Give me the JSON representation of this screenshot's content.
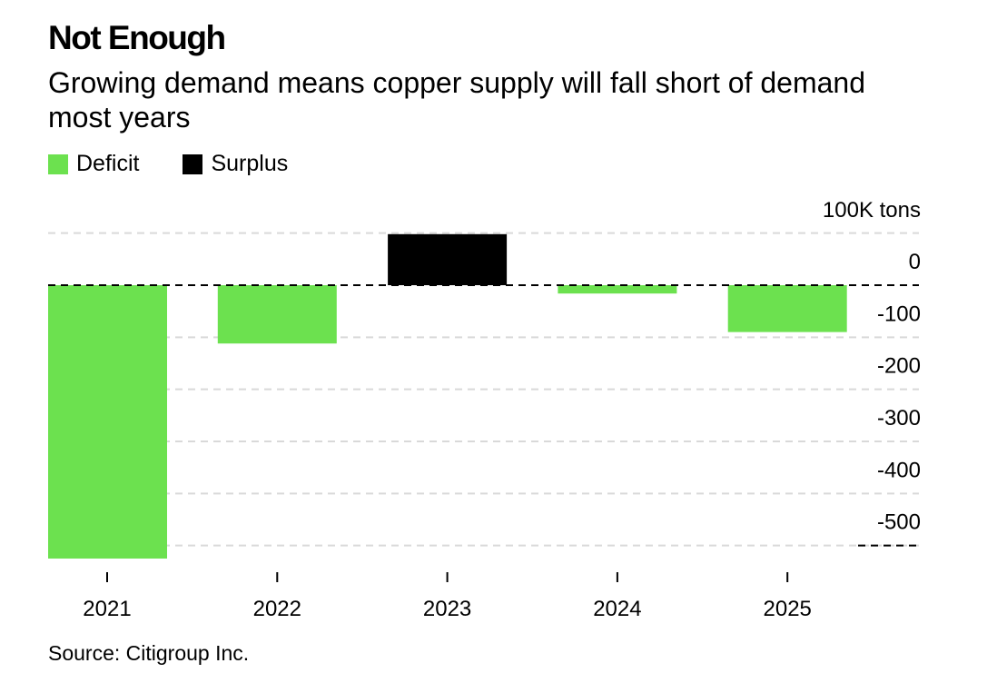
{
  "chart_data": {
    "type": "bar",
    "title": "Not Enough",
    "subtitle": "Growing demand means copper supply will fall short of demand most years",
    "unit_label": "100K tons",
    "categories": [
      "2021",
      "2022",
      "2023",
      "2024",
      "2025"
    ],
    "series": [
      {
        "values": [
          -525,
          -112,
          98,
          -16,
          -90
        ],
        "kinds": [
          "Deficit",
          "Deficit",
          "Surplus",
          "Deficit",
          "Deficit"
        ]
      }
    ],
    "legend": [
      {
        "label": "Deficit",
        "color": "#6ce14f"
      },
      {
        "label": "Surplus",
        "color": "#000000"
      }
    ],
    "yticks": [
      0,
      -100,
      -200,
      -300,
      -400,
      -500
    ],
    "ylim": [
      -525,
      100
    ],
    "legend_position": "top-left",
    "grid": true,
    "source": "Source: Citigroup Inc."
  }
}
